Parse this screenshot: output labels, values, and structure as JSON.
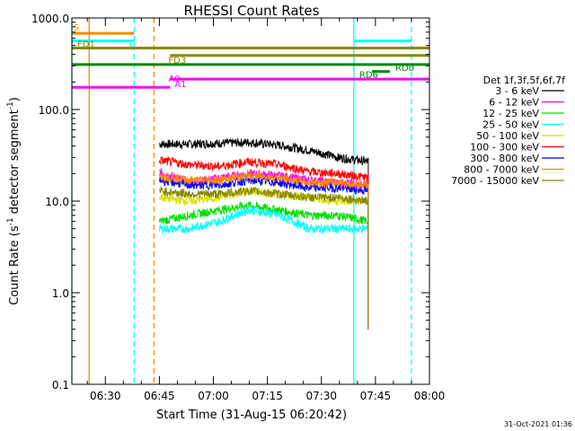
{
  "chart_data": {
    "type": "line",
    "title": "RHESSI Count Rates",
    "xlabel": "Start Time (31-Aug-15 06:20:42)",
    "ylabel_main": "Count Rate (s",
    "ylabel_sup1": "-1",
    "ylabel_mid": " detector segment",
    "ylabel_sup2": "-1",
    "ylabel_end": ")",
    "y_scale": "log",
    "x_range": [
      "06:20:42",
      "08:00:00"
    ],
    "ylim": [
      0.1,
      1000.0
    ],
    "x_ticks": [
      "06:30",
      "06:45",
      "07:00",
      "07:15",
      "07:30",
      "07:45",
      "08:00"
    ],
    "y_ticks": [
      "0.1",
      "1.0",
      "10.0",
      "100.0",
      "1000.0"
    ],
    "legend_title": "Det 1f,3f,5f,6f,7f",
    "legend_position": "right",
    "series": [
      {
        "name": "3 - 6 keV",
        "color": "#000000",
        "start_time": "06:45:00",
        "end_time": "07:43:00",
        "approx_values": [
          42,
          42,
          43,
          44,
          41,
          36,
          30,
          27
        ]
      },
      {
        "name": "6 - 12 keV",
        "color": "#ff00ff",
        "start_time": "06:45:00",
        "end_time": "07:43:00",
        "approx_values": [
          21,
          16,
          18,
          20,
          19,
          17,
          16,
          15
        ]
      },
      {
        "name": "12 - 25 keV",
        "color": "#00dd00",
        "start_time": "06:45:00",
        "end_time": "07:43:00",
        "approx_values": [
          6,
          7,
          8,
          9,
          8,
          7,
          7,
          6
        ]
      },
      {
        "name": "25 - 50 keV",
        "color": "#00ffff",
        "start_time": "06:45:00",
        "end_time": "07:43:00",
        "approx_values": [
          5,
          5,
          6,
          8,
          7,
          5,
          5,
          5
        ]
      },
      {
        "name": "50 - 100 keV",
        "color": "#dddd00",
        "start_time": "06:45:00",
        "end_time": "07:43:00",
        "approx_values": [
          11,
          10,
          11,
          13,
          12,
          11,
          10,
          10
        ]
      },
      {
        "name": "100 - 300 keV",
        "color": "#ff0000",
        "start_time": "06:45:00",
        "end_time": "07:43:00",
        "approx_values": [
          28,
          25,
          24,
          27,
          25,
          21,
          20,
          18
        ]
      },
      {
        "name": "300 - 800 keV",
        "color": "#0000ff",
        "start_time": "06:45:00",
        "end_time": "07:43:00",
        "approx_values": [
          17,
          15,
          15,
          17,
          16,
          14,
          14,
          13
        ]
      },
      {
        "name": "800 - 7000 keV",
        "color": "#ff8800",
        "start_time": "06:45:00",
        "end_time": "07:43:00",
        "approx_values": [
          19,
          17,
          17,
          19,
          18,
          16,
          16,
          15
        ]
      },
      {
        "name": "7000 - 15000 keV",
        "color": "#888800",
        "start_time": "06:45:00",
        "end_time": "07:43:00",
        "approx_values": [
          13,
          12,
          12,
          13,
          12,
          11,
          11,
          10
        ]
      }
    ],
    "state_bars": [
      {
        "label": "S",
        "color": "#ff8800",
        "y": 680,
        "start_time": "06:20:42",
        "end_time": "06:38:00"
      },
      {
        "label": "N",
        "color": "#00ffff",
        "y": 560,
        "start_time": "06:20:42",
        "end_time": "06:38:00"
      },
      {
        "label": "FD1",
        "color": "#888800",
        "y": 470,
        "start_time": "06:20:42",
        "end_time": "08:00:00"
      },
      {
        "label": "FD3",
        "color": "#888800",
        "y": 390,
        "start_time": "06:48:00",
        "end_time": "08:00:00"
      },
      {
        "label": "RD0",
        "color": "#008800",
        "y": 310,
        "start_time": "06:20:42",
        "end_time": "08:00:00"
      },
      {
        "label": "RD6",
        "color": "#008800",
        "y": 260,
        "start_time": "07:44:00",
        "end_time": "07:49:00"
      },
      {
        "label": "A0",
        "color": "#ff00ff",
        "y": 175,
        "start_time": "06:20:42",
        "end_time": "06:48:00"
      },
      {
        "label": "A1",
        "color": "#ff00ff",
        "y": 215,
        "start_time": "06:48:00",
        "end_time": "08:00:00"
      },
      {
        "label": "",
        "color": "#00ffff",
        "y": 560,
        "start_time": "07:39:00",
        "end_time": "07:55:00"
      }
    ],
    "vertical_markers": [
      {
        "color": "#00ffff",
        "time": "06:20:42",
        "style": "solid"
      },
      {
        "color": "#ff8800",
        "time": "06:25:30",
        "style": "solid"
      },
      {
        "color": "#00ffff",
        "time": "06:38:00",
        "style": "dashed"
      },
      {
        "color": "#ff8800",
        "time": "06:43:30",
        "style": "dashed"
      },
      {
        "color": "#00ffff",
        "time": "07:39:00",
        "style": "solid"
      },
      {
        "color": "#00ffff",
        "time": "07:55:00",
        "style": "dashed"
      }
    ],
    "timestamp": "31-Oct-2021 01:36"
  }
}
